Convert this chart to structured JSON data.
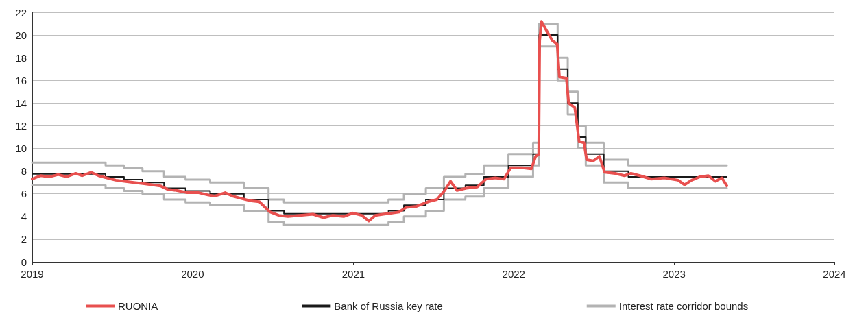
{
  "chart_data": {
    "type": "line",
    "xlim": [
      "2019",
      "2024"
    ],
    "xticks": [
      "2019",
      "2020",
      "2021",
      "2022",
      "2023",
      "2024"
    ],
    "ylim": [
      0,
      22
    ],
    "yticks": [
      0,
      2,
      4,
      6,
      8,
      10,
      12,
      14,
      16,
      18,
      20,
      22
    ],
    "grid": "y",
    "legend": "bottom",
    "series": [
      {
        "name": "RUONIA",
        "color": "#e8504f",
        "x": [
          "2019-01-01",
          "2019-01-20",
          "2019-02-10",
          "2019-03-01",
          "2019-03-20",
          "2019-04-10",
          "2019-04-25",
          "2019-05-15",
          "2019-06-01",
          "2019-06-20",
          "2019-07-10",
          "2019-07-30",
          "2019-08-20",
          "2019-09-10",
          "2019-09-30",
          "2019-10-20",
          "2019-11-05",
          "2019-11-25",
          "2019-12-20",
          "2020-01-15",
          "2020-02-05",
          "2020-02-20",
          "2020-03-15",
          "2020-04-01",
          "2020-04-20",
          "2020-05-10",
          "2020-06-01",
          "2020-06-25",
          "2020-07-15",
          "2020-08-05",
          "2020-09-01",
          "2020-10-01",
          "2020-10-25",
          "2020-11-15",
          "2020-12-10",
          "2020-12-31",
          "2021-01-20",
          "2021-02-05",
          "2021-02-20",
          "2021-03-10",
          "2021-03-30",
          "2021-04-15",
          "2021-05-01",
          "2021-05-25",
          "2021-06-20",
          "2021-07-10",
          "2021-07-28",
          "2021-08-10",
          "2021-08-25",
          "2021-09-15",
          "2021-10-10",
          "2021-10-30",
          "2021-11-20",
          "2021-12-10",
          "2021-12-25",
          "2022-01-20",
          "2022-02-10",
          "2022-02-20",
          "2022-02-27",
          "2022-03-01",
          "2022-03-05",
          "2022-03-15",
          "2022-03-30",
          "2022-04-10",
          "2022-04-15",
          "2022-05-01",
          "2022-05-06",
          "2022-05-20",
          "2022-05-30",
          "2022-06-10",
          "2022-06-16",
          "2022-07-01",
          "2022-07-15",
          "2022-07-27",
          "2022-08-20",
          "2022-09-10",
          "2022-09-25",
          "2022-10-15",
          "2022-11-10",
          "2022-12-10",
          "2023-01-10",
          "2023-01-25",
          "2023-02-10",
          "2023-03-01",
          "2023-03-20",
          "2023-04-05",
          "2023-04-20",
          "2023-05-01"
        ],
        "values": [
          7.3,
          7.6,
          7.5,
          7.7,
          7.5,
          7.8,
          7.6,
          7.9,
          7.6,
          7.4,
          7.2,
          7.1,
          7.0,
          6.9,
          6.8,
          6.7,
          6.4,
          6.3,
          6.1,
          6.1,
          5.9,
          5.8,
          6.1,
          5.8,
          5.6,
          5.4,
          5.3,
          4.4,
          4.1,
          4.0,
          4.1,
          4.2,
          3.9,
          4.1,
          4.0,
          4.3,
          4.1,
          3.6,
          4.1,
          4.2,
          4.3,
          4.4,
          4.8,
          4.9,
          5.3,
          5.5,
          6.3,
          7.1,
          6.3,
          6.5,
          6.6,
          7.3,
          7.4,
          7.3,
          8.3,
          8.3,
          8.2,
          9.3,
          9.5,
          19.5,
          21.2,
          20.5,
          19.5,
          19.2,
          16.3,
          16.2,
          14.0,
          13.6,
          10.6,
          10.5,
          9.0,
          8.9,
          9.3,
          7.9,
          7.8,
          7.6,
          7.8,
          7.6,
          7.3,
          7.4,
          7.2,
          6.8,
          7.2,
          7.5,
          7.6,
          7.1,
          7.4,
          6.7
        ]
      },
      {
        "name": "Bank of Russia key rate",
        "type": "step",
        "color": "#1a1a1a",
        "x": [
          "2019-01-01",
          "2019-06-17",
          "2019-07-29",
          "2019-09-09",
          "2019-10-28",
          "2019-12-16",
          "2020-02-10",
          "2020-04-27",
          "2020-06-22",
          "2020-07-27",
          "2021-03-22",
          "2021-04-26",
          "2021-06-15",
          "2021-07-26",
          "2021-09-13",
          "2021-10-25",
          "2021-12-20",
          "2022-02-14",
          "2022-02-28",
          "2022-04-11",
          "2022-05-04",
          "2022-05-27",
          "2022-06-14",
          "2022-07-25",
          "2022-09-19",
          "2023-05-01"
        ],
        "values": [
          7.75,
          7.5,
          7.25,
          7.0,
          6.5,
          6.25,
          6.0,
          5.5,
          4.5,
          4.25,
          4.5,
          5.0,
          5.5,
          6.5,
          6.75,
          7.5,
          8.5,
          9.5,
          20,
          17,
          14,
          11,
          9.5,
          8,
          7.5,
          7.5
        ]
      },
      {
        "name": "Interest rate corridor bounds",
        "type": "step",
        "color": "#b3b3b3",
        "x": [
          "2019-01-01",
          "2019-06-17",
          "2019-07-29",
          "2019-09-09",
          "2019-10-28",
          "2019-12-16",
          "2020-02-10",
          "2020-04-27",
          "2020-06-22",
          "2020-07-27",
          "2021-03-22",
          "2021-04-26",
          "2021-06-15",
          "2021-07-26",
          "2021-09-13",
          "2021-10-25",
          "2021-12-20",
          "2022-02-14",
          "2022-02-28",
          "2022-04-11",
          "2022-05-04",
          "2022-05-27",
          "2022-06-14",
          "2022-07-25",
          "2022-09-19",
          "2023-05-01"
        ],
        "values": [
          8.75,
          8.5,
          8.25,
          8.0,
          7.5,
          7.25,
          7.0,
          6.5,
          5.5,
          5.25,
          5.5,
          6.0,
          6.5,
          7.5,
          7.75,
          8.5,
          9.5,
          10.5,
          21,
          18,
          15,
          12,
          10.5,
          9,
          8.5,
          8.5
        ]
      },
      {
        "type": "step",
        "color": "#b3b3b3",
        "x": [
          "2019-01-01",
          "2019-06-17",
          "2019-07-29",
          "2019-09-09",
          "2019-10-28",
          "2019-12-16",
          "2020-02-10",
          "2020-04-27",
          "2020-06-22",
          "2020-07-27",
          "2021-03-22",
          "2021-04-26",
          "2021-06-15",
          "2021-07-26",
          "2021-09-13",
          "2021-10-25",
          "2021-12-20",
          "2022-02-14",
          "2022-02-28",
          "2022-04-11",
          "2022-05-04",
          "2022-05-27",
          "2022-06-14",
          "2022-07-25",
          "2022-09-19",
          "2023-05-01"
        ],
        "values": [
          6.75,
          6.5,
          6.25,
          6.0,
          5.5,
          5.25,
          5.0,
          4.5,
          3.5,
          3.25,
          3.5,
          4.0,
          4.5,
          5.5,
          5.75,
          6.5,
          7.5,
          8.5,
          19,
          16,
          13,
          10,
          8.5,
          7,
          6.5,
          6.5
        ]
      }
    ]
  }
}
